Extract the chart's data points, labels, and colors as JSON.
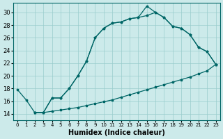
{
  "xlabel": "Humidex (Indice chaleur)",
  "bg_color": "#cceaea",
  "line_color": "#006666",
  "grid_color": "#99cccc",
  "xlim": [
    -0.5,
    23.5
  ],
  "ylim": [
    13,
    31.5
  ],
  "xticks": [
    0,
    1,
    2,
    3,
    4,
    5,
    6,
    7,
    8,
    9,
    10,
    11,
    12,
    13,
    14,
    15,
    16,
    17,
    18,
    19,
    20,
    21,
    22,
    23
  ],
  "yticks": [
    14,
    16,
    18,
    20,
    22,
    24,
    26,
    28,
    30
  ],
  "line1_x": [
    0,
    1,
    2,
    3,
    4,
    5,
    6,
    7,
    8,
    9,
    10,
    11,
    12,
    13,
    14,
    15,
    16,
    17,
    18,
    19,
    20,
    21,
    22,
    23
  ],
  "line1_y": [
    17.8,
    16.2,
    14.2,
    14.2,
    16.5,
    16.5,
    18.0,
    20.0,
    22.3,
    26.0,
    27.5,
    28.3,
    28.5,
    29.0,
    29.2,
    31.0,
    30.0,
    29.2,
    27.8,
    27.5,
    26.5,
    24.5,
    23.8,
    21.8
  ],
  "line2_x": [
    2,
    3,
    4,
    5,
    6,
    7,
    8,
    9,
    10,
    11,
    12,
    13,
    14,
    15,
    16,
    17,
    18,
    19,
    20,
    21,
    22,
    23
  ],
  "line2_y": [
    14.2,
    14.2,
    14.4,
    14.6,
    14.8,
    15.0,
    15.3,
    15.6,
    15.9,
    16.2,
    16.6,
    17.0,
    17.4,
    17.8,
    18.2,
    18.6,
    19.0,
    19.4,
    19.8,
    20.3,
    20.8,
    21.8
  ],
  "line3_x": [
    2,
    3,
    4,
    5,
    6,
    7,
    8,
    9,
    10,
    11,
    12,
    13,
    14,
    15,
    16,
    17,
    18,
    19,
    20,
    21,
    22,
    23
  ],
  "line3_y": [
    14.2,
    14.2,
    16.5,
    16.5,
    18.0,
    20.0,
    22.3,
    26.0,
    27.5,
    28.3,
    28.5,
    29.0,
    29.2,
    29.5,
    30.0,
    29.2,
    27.8,
    27.5,
    26.5,
    24.5,
    23.8,
    21.8
  ]
}
